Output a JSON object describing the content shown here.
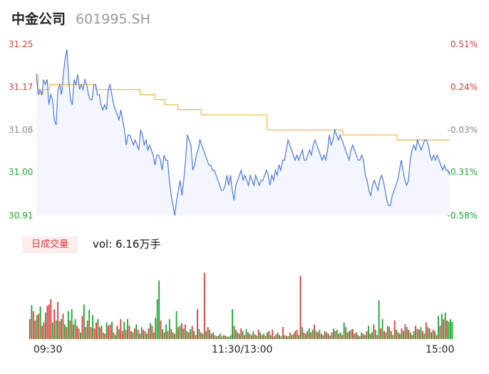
{
  "header": {
    "name": "中金公司",
    "code": "601995.SH"
  },
  "price_axis": {
    "left_ticks": [
      "31.25",
      "31.17",
      "31.08",
      "31.00",
      "30.91"
    ],
    "right_ticks": [
      "0.51%",
      "0.24%",
      "-0.03%",
      "-0.31%",
      "-0.58%"
    ]
  },
  "volume_panel": {
    "tab_label": "日成交量",
    "vol_text": "vol: 6.16万手"
  },
  "time_axis": {
    "start": "09:30",
    "mid": "11:30/13:00",
    "end": "15:00"
  },
  "colors": {
    "up": "#e23b3b",
    "down": "#19a82e",
    "price_line": "#4a79e0",
    "avg_line": "#f1b73a",
    "fill": "#f3f6fd"
  },
  "chart_data": [
    {
      "type": "line",
      "title": "",
      "ylim": [
        30.91,
        31.25
      ],
      "x_range": [
        "09:30",
        "15:00"
      ],
      "series": [
        {
          "values": [
            31.19,
            31.15,
            31.16,
            31.15,
            31.18,
            31.17,
            31.18,
            31.13,
            31.15,
            31.14,
            31.1,
            31.09,
            31.16,
            31.17,
            31.15,
            31.19,
            31.22,
            31.24,
            31.18,
            31.14,
            31.13,
            31.18,
            31.17,
            31.19,
            31.16,
            31.17,
            31.16,
            31.18,
            31.17,
            31.15,
            31.14,
            31.14,
            31.17,
            31.17,
            31.15,
            31.15,
            31.13,
            31.12,
            31.13,
            31.12,
            31.16,
            31.17,
            31.15,
            31.13,
            31.12,
            31.11,
            31.1,
            31.12,
            31.1,
            31.08,
            31.05,
            31.07,
            31.07,
            31.06,
            31.05,
            31.06,
            31.05,
            31.04,
            31.08,
            31.07,
            31.05,
            31.06,
            31.04,
            31.05,
            31.04,
            31.03,
            31.01,
            31.03,
            31.03,
            31.02,
            31.0,
            31.03,
            31.02,
            31.02,
            30.98,
            30.95,
            30.93,
            30.91,
            30.94,
            30.96,
            30.98,
            30.95,
            30.98,
            31.02,
            31.07,
            31.06,
            31.05,
            31.0,
            31.01,
            31.03,
            31.04,
            31.06,
            31.05,
            31.04,
            31.03,
            31.02,
            31.01,
            31.01,
            31.0,
            31.0,
            30.99,
            30.98,
            30.97,
            30.96,
            30.96,
            30.97,
            30.99,
            30.97,
            30.99,
            30.96,
            30.94,
            30.97,
            30.98,
            30.99,
            31.0,
            30.98,
            30.99,
            30.98,
            30.97,
            30.99,
            30.98,
            30.97,
            30.99,
            30.98,
            30.97,
            30.98,
            30.98,
            30.99,
            31.0,
            30.99,
            30.97,
            30.99,
            30.98,
            31.0,
            30.99,
            31.01,
            31.0,
            31.02,
            31.02,
            31.04,
            31.06,
            31.05,
            31.04,
            31.03,
            31.02,
            31.03,
            31.02,
            31.03,
            31.04,
            31.02,
            31.02,
            31.03,
            31.04,
            31.03,
            31.05,
            31.06,
            31.05,
            31.04,
            31.03,
            31.02,
            31.03,
            31.02,
            31.04,
            31.07,
            31.05,
            31.06,
            31.08,
            31.07,
            31.06,
            31.07,
            31.06,
            31.05,
            31.04,
            31.03,
            31.02,
            31.04,
            31.05,
            31.04,
            31.03,
            31.02,
            31.02,
            31.03,
            31.02,
            30.99,
            30.98,
            30.96,
            30.95,
            30.97,
            30.98,
            30.97,
            30.96,
            30.98,
            30.99,
            30.98,
            30.96,
            30.94,
            30.93,
            30.93,
            30.95,
            30.96,
            30.97,
            30.98,
            31.0,
            31.02,
            31.0,
            30.98,
            30.97,
            30.98,
            31.02,
            31.04,
            31.05,
            31.04,
            31.06,
            31.05,
            31.04,
            31.05,
            31.06,
            31.06,
            31.05,
            31.03,
            31.02,
            31.03,
            31.02,
            31.03,
            31.02,
            31.01,
            31.0,
            31.01,
            31.0,
            31.0,
            30.99
          ]
        },
        {
          "values": [
            31.19,
            31.16,
            31.15,
            31.15,
            31.16,
            31.16,
            31.16,
            31.16,
            31.17,
            31.17,
            31.17,
            31.17,
            31.17,
            31.17,
            31.17,
            31.17,
            31.17,
            31.17,
            31.17,
            31.17,
            31.17,
            31.17,
            31.17,
            31.17,
            31.17,
            31.17,
            31.17,
            31.17,
            31.17,
            31.17,
            31.17,
            31.17,
            31.17,
            31.17,
            31.17,
            31.17,
            31.16,
            31.16,
            31.16,
            31.16,
            31.16,
            31.16,
            31.16,
            31.16,
            31.16,
            31.16,
            31.16,
            31.16,
            31.16,
            31.16,
            31.16,
            31.16,
            31.16,
            31.16,
            31.16,
            31.16,
            31.16,
            31.16,
            31.16,
            31.16,
            31.16,
            31.16,
            31.16,
            31.15,
            31.15,
            31.15,
            31.15,
            31.15,
            31.15,
            31.15,
            31.15,
            31.15,
            31.14,
            31.14,
            31.14,
            31.14,
            31.14,
            31.14,
            31.13,
            31.13,
            31.13,
            31.13,
            31.13,
            31.13,
            31.13,
            31.13,
            31.12,
            31.12,
            31.12,
            31.12,
            31.12,
            31.12,
            31.12,
            31.12,
            31.12,
            31.12,
            31.12,
            31.12,
            31.12,
            31.12,
            31.11,
            31.11,
            31.11,
            31.11,
            31.11,
            31.11,
            31.11,
            31.11,
            31.11,
            31.11,
            31.11,
            31.11,
            31.11,
            31.11,
            31.11,
            31.11,
            31.11,
            31.11,
            31.11,
            31.11,
            31.11,
            31.11,
            31.11,
            31.11,
            31.11,
            31.11,
            31.11,
            31.11,
            31.11,
            31.11,
            31.11,
            31.11,
            31.11,
            31.11,
            31.11,
            31.11,
            31.11,
            31.11,
            31.11,
            31.11,
            31.08,
            31.08,
            31.08,
            31.08,
            31.08,
            31.08,
            31.08,
            31.08,
            31.08,
            31.08,
            31.08,
            31.08,
            31.08,
            31.08,
            31.08,
            31.08,
            31.08,
            31.08,
            31.08,
            31.08,
            31.08,
            31.08,
            31.08,
            31.08,
            31.08,
            31.08,
            31.08,
            31.08,
            31.08,
            31.08,
            31.08,
            31.08,
            31.08,
            31.08,
            31.08,
            31.08,
            31.08,
            31.08,
            31.08,
            31.08,
            31.08,
            31.08,
            31.08,
            31.08,
            31.08,
            31.08,
            31.07,
            31.07,
            31.07,
            31.07,
            31.07,
            31.07,
            31.07,
            31.07,
            31.07,
            31.07,
            31.07,
            31.07,
            31.07,
            31.07,
            31.07,
            31.07,
            31.07,
            31.07,
            31.07,
            31.07,
            31.07,
            31.07,
            31.07,
            31.07,
            31.07,
            31.07,
            31.07,
            31.07,
            31.07,
            31.07,
            31.07,
            31.07,
            31.07,
            31.06,
            31.06,
            31.06,
            31.06,
            31.06,
            31.06,
            31.06,
            31.06,
            31.06,
            31.06,
            31.06,
            31.06,
            31.06,
            31.06,
            31.06,
            31.06,
            31.06,
            31.06,
            31.06,
            31.06,
            31.06,
            31.06,
            31.06,
            31.06,
            31.06,
            31.06,
            31.06,
            31.06,
            31.06,
            31.06,
            31.06,
            31.06,
            31.06
          ]
        }
      ]
    },
    {
      "type": "bar",
      "title": "",
      "ylim": [
        0,
        100
      ],
      "values": [
        30,
        51,
        42,
        28,
        36,
        38,
        49,
        20,
        25,
        40,
        50,
        52,
        60,
        25,
        45,
        28,
        56,
        27,
        30,
        38,
        22,
        18,
        42,
        28,
        45,
        22,
        30,
        20,
        16,
        10,
        35,
        52,
        18,
        28,
        44,
        18,
        36,
        16,
        25,
        30,
        18,
        20,
        10,
        8,
        25,
        20,
        22,
        26,
        10,
        6,
        20,
        15,
        30,
        12,
        26,
        14,
        30,
        20,
        12,
        10,
        16,
        22,
        14,
        8,
        18,
        14,
        12,
        8,
        16,
        24,
        20,
        10,
        32,
        60,
        88,
        28,
        15,
        10,
        22,
        12,
        30,
        15,
        10,
        8,
        42,
        18,
        20,
        24,
        16,
        22,
        12,
        10,
        15,
        20,
        12,
        6,
        45,
        15,
        10,
        8,
        100,
        12,
        18,
        14,
        8,
        10,
        6,
        4,
        5,
        8,
        4,
        6,
        5,
        4,
        3,
        6,
        45,
        20,
        14,
        10,
        8,
        16,
        12,
        6,
        15,
        10,
        8,
        6,
        12,
        7,
        5,
        14,
        10,
        6,
        8,
        5,
        10,
        12,
        6,
        14,
        4,
        7,
        10,
        6,
        4,
        18,
        6,
        5,
        4,
        10,
        6,
        8,
        12,
        14,
        6,
        95,
        18,
        10,
        8,
        12,
        16,
        10,
        14,
        22,
        12,
        10,
        14,
        8,
        6,
        12,
        10,
        8,
        5,
        10,
        16,
        12,
        14,
        8,
        10,
        6,
        25,
        18,
        10,
        12,
        14,
        15,
        8,
        10,
        6,
        4,
        10,
        8,
        6,
        12,
        20,
        8,
        10,
        22,
        14,
        6,
        58,
        16,
        30,
        12,
        10,
        20,
        18,
        12,
        6,
        28,
        14,
        10,
        8,
        16,
        12,
        22,
        18,
        14,
        10,
        6,
        12,
        20,
        15,
        14,
        18,
        12,
        8,
        25,
        18,
        16,
        10,
        14,
        12,
        6,
        35,
        20,
        38,
        30,
        40,
        28,
        26,
        30,
        26
      ],
      "directions": [
        "u",
        "d",
        "u",
        "u",
        "d",
        "u",
        "d",
        "u",
        "u",
        "d",
        "u",
        "u",
        "u",
        "d",
        "u",
        "d",
        "u",
        "u",
        "d",
        "u",
        "d",
        "u",
        "d",
        "u",
        "d",
        "u",
        "d",
        "u",
        "u",
        "d",
        "u",
        "d",
        "u",
        "u",
        "d",
        "u",
        "d",
        "u",
        "u",
        "d",
        "u",
        "u",
        "d",
        "u",
        "d",
        "u",
        "u",
        "d",
        "u",
        "d",
        "u",
        "d",
        "u",
        "u",
        "d",
        "u",
        "d",
        "u",
        "u",
        "d",
        "u",
        "d",
        "u",
        "d",
        "u",
        "d",
        "u",
        "d",
        "u",
        "d",
        "u",
        "u",
        "d",
        "d",
        "d",
        "u",
        "d",
        "u",
        "d",
        "u",
        "d",
        "u",
        "d",
        "u",
        "d",
        "u",
        "d",
        "u",
        "d",
        "u",
        "d",
        "u",
        "d",
        "u",
        "d",
        "u",
        "u",
        "d",
        "u",
        "d",
        "u",
        "d",
        "u",
        "d",
        "u",
        "d",
        "u",
        "d",
        "u",
        "d",
        "u",
        "d",
        "u",
        "d",
        "u",
        "d",
        "d",
        "u",
        "d",
        "u",
        "d",
        "u",
        "d",
        "u",
        "d",
        "u",
        "d",
        "u",
        "d",
        "u",
        "d",
        "u",
        "d",
        "u",
        "d",
        "u",
        "d",
        "u",
        "d",
        "u",
        "d",
        "u",
        "d",
        "u",
        "d",
        "u",
        "d",
        "u",
        "d",
        "u",
        "d",
        "u",
        "d",
        "u",
        "d",
        "u",
        "d",
        "u",
        "d",
        "u",
        "d",
        "u",
        "d",
        "u",
        "d",
        "u",
        "d",
        "u",
        "d",
        "u",
        "d",
        "u",
        "d",
        "u",
        "d",
        "u",
        "d",
        "u",
        "d",
        "u",
        "d",
        "u",
        "d",
        "u",
        "d",
        "u",
        "d",
        "u",
        "d",
        "u",
        "d",
        "u",
        "d",
        "u",
        "d",
        "u",
        "d",
        "u",
        "d",
        "u",
        "d",
        "u",
        "d",
        "u",
        "d",
        "u",
        "d",
        "u",
        "d",
        "u",
        "d",
        "u",
        "d",
        "u",
        "d",
        "u",
        "d",
        "u",
        "d",
        "u",
        "d",
        "u",
        "d",
        "u",
        "d",
        "u",
        "d",
        "u",
        "d",
        "u",
        "d",
        "u",
        "d",
        "u",
        "d",
        "u",
        "d",
        "u",
        "d",
        "u"
      ]
    }
  ]
}
